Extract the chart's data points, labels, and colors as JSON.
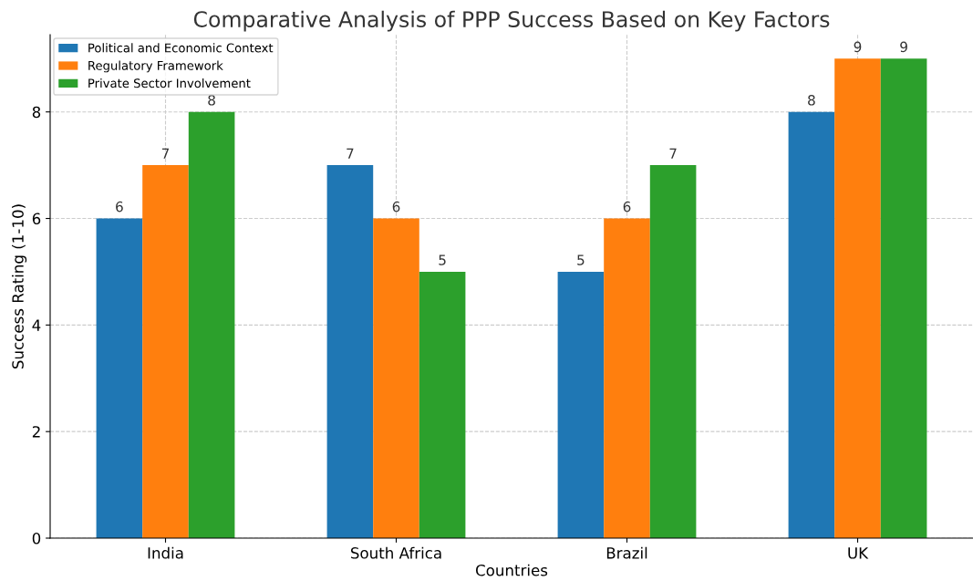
{
  "chart_data": {
    "type": "bar",
    "title": "Comparative Analysis of PPP Success Based on Key Factors",
    "xlabel": "Countries",
    "ylabel": "Success Rating (1-10)",
    "categories": [
      "India",
      "South Africa",
      "Brazil",
      "UK"
    ],
    "series": [
      {
        "name": "Political and Economic Context",
        "color": "#1f77b4",
        "values": [
          6,
          7,
          5,
          8
        ]
      },
      {
        "name": "Regulatory Framework",
        "color": "#ff7f0e",
        "values": [
          7,
          6,
          6,
          9
        ]
      },
      {
        "name": "Private Sector Involvement",
        "color": "#2ca02c",
        "values": [
          8,
          5,
          7,
          9
        ]
      }
    ],
    "ylim": [
      0,
      9.45
    ],
    "yticks": [
      0,
      2,
      4,
      6,
      8
    ],
    "grid": true,
    "legend": "top left",
    "data_labels": true
  }
}
